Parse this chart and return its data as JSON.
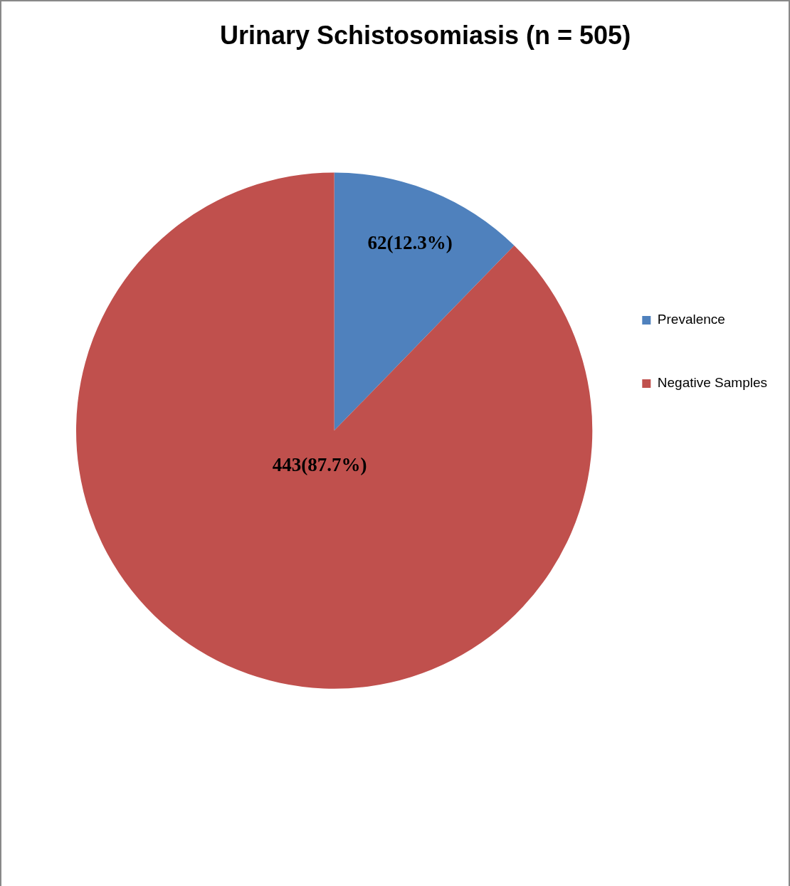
{
  "chart_data": {
    "type": "pie",
    "title": "Urinary Schistosomiasis (n = 505)",
    "categories": [
      "Prevalence",
      "Negative Samples"
    ],
    "values": [
      62,
      443
    ],
    "colors": [
      "#4f81bd",
      "#c0504d"
    ],
    "value_labels": [
      "62(12.3%)",
      "443(87.7%)"
    ],
    "legend": "right"
  }
}
